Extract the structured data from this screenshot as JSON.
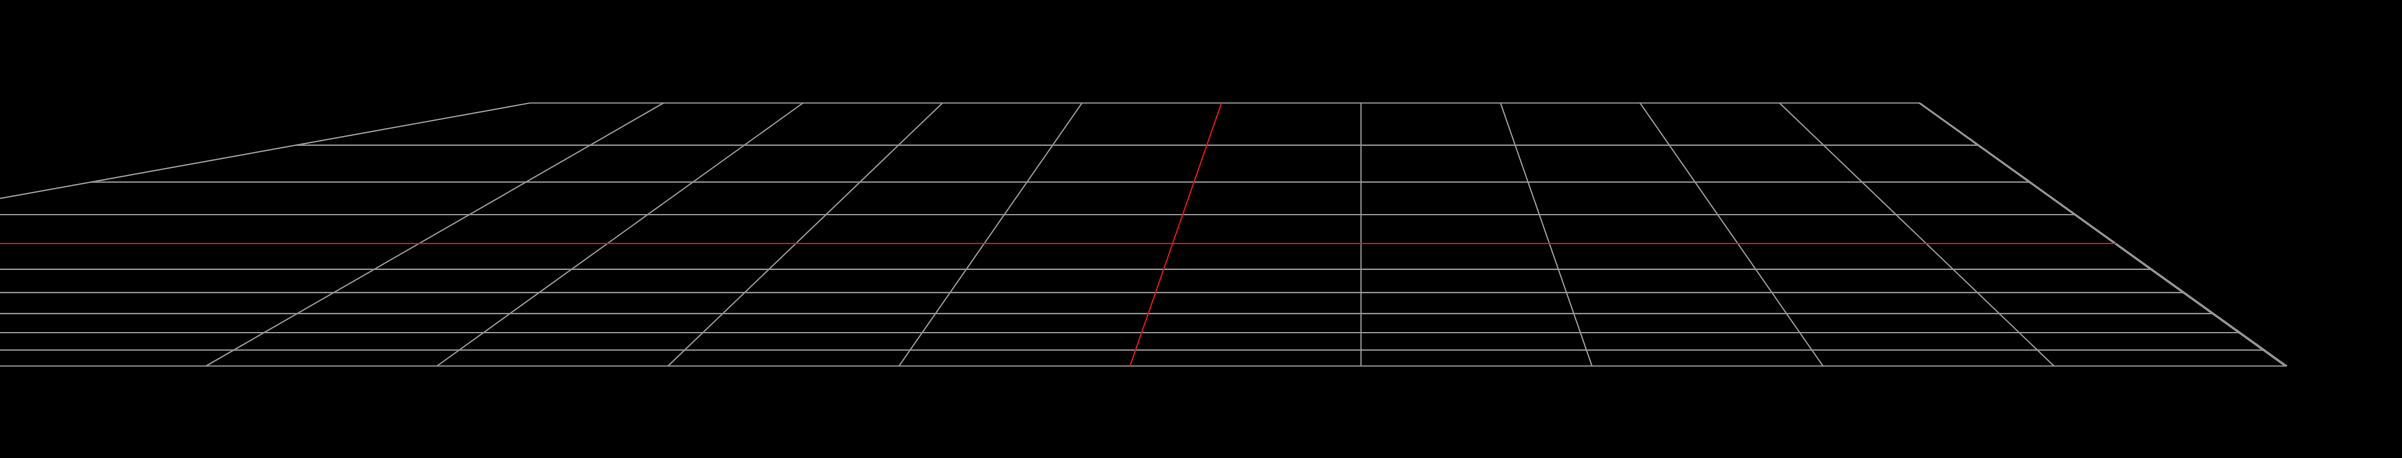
{
  "scene": {
    "type": "3d-viewport",
    "background_color": "#000000",
    "grid": {
      "visible": true,
      "divisions": 10,
      "grid_color": "#9a9a9a",
      "axis_color": "#e01818"
    }
  }
}
